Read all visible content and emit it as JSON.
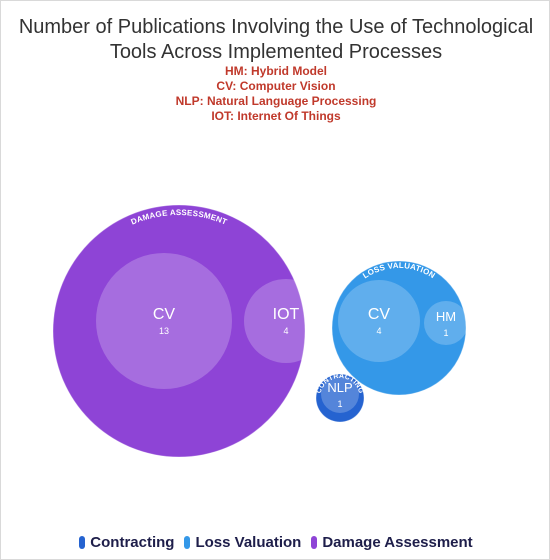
{
  "chart_data": {
    "type": "bubble",
    "title": "Number of Publications Involving the Use of Technological Tools Across Implemented Processes",
    "title_lines": [
      "Number of Publications Involving the Use of Technological",
      "Tools Across Implemented Processes"
    ],
    "abbreviations": [
      "HM: Hybrid Model",
      "CV: Computer Vision",
      "NLP: Natural Language Processing",
      "IOT: Internet Of Things"
    ],
    "groups": [
      {
        "name": "DAMAGE ASSESSMENT",
        "legend": "Damage Assessment",
        "color": "#8e44d6",
        "items": [
          {
            "label": "CV",
            "value": 13
          },
          {
            "label": "IOT",
            "value": 4
          }
        ]
      },
      {
        "name": "LOSS VALUATION",
        "legend": "Loss Valuation",
        "color": "#3498e8",
        "items": [
          {
            "label": "CV",
            "value": 4
          },
          {
            "label": "HM",
            "value": 1
          }
        ]
      },
      {
        "name": "CONTRACTING",
        "legend": "Contracting",
        "color": "#2563d0",
        "items": [
          {
            "label": "NLP",
            "value": 1
          }
        ]
      }
    ],
    "legend_position": "bottom"
  }
}
